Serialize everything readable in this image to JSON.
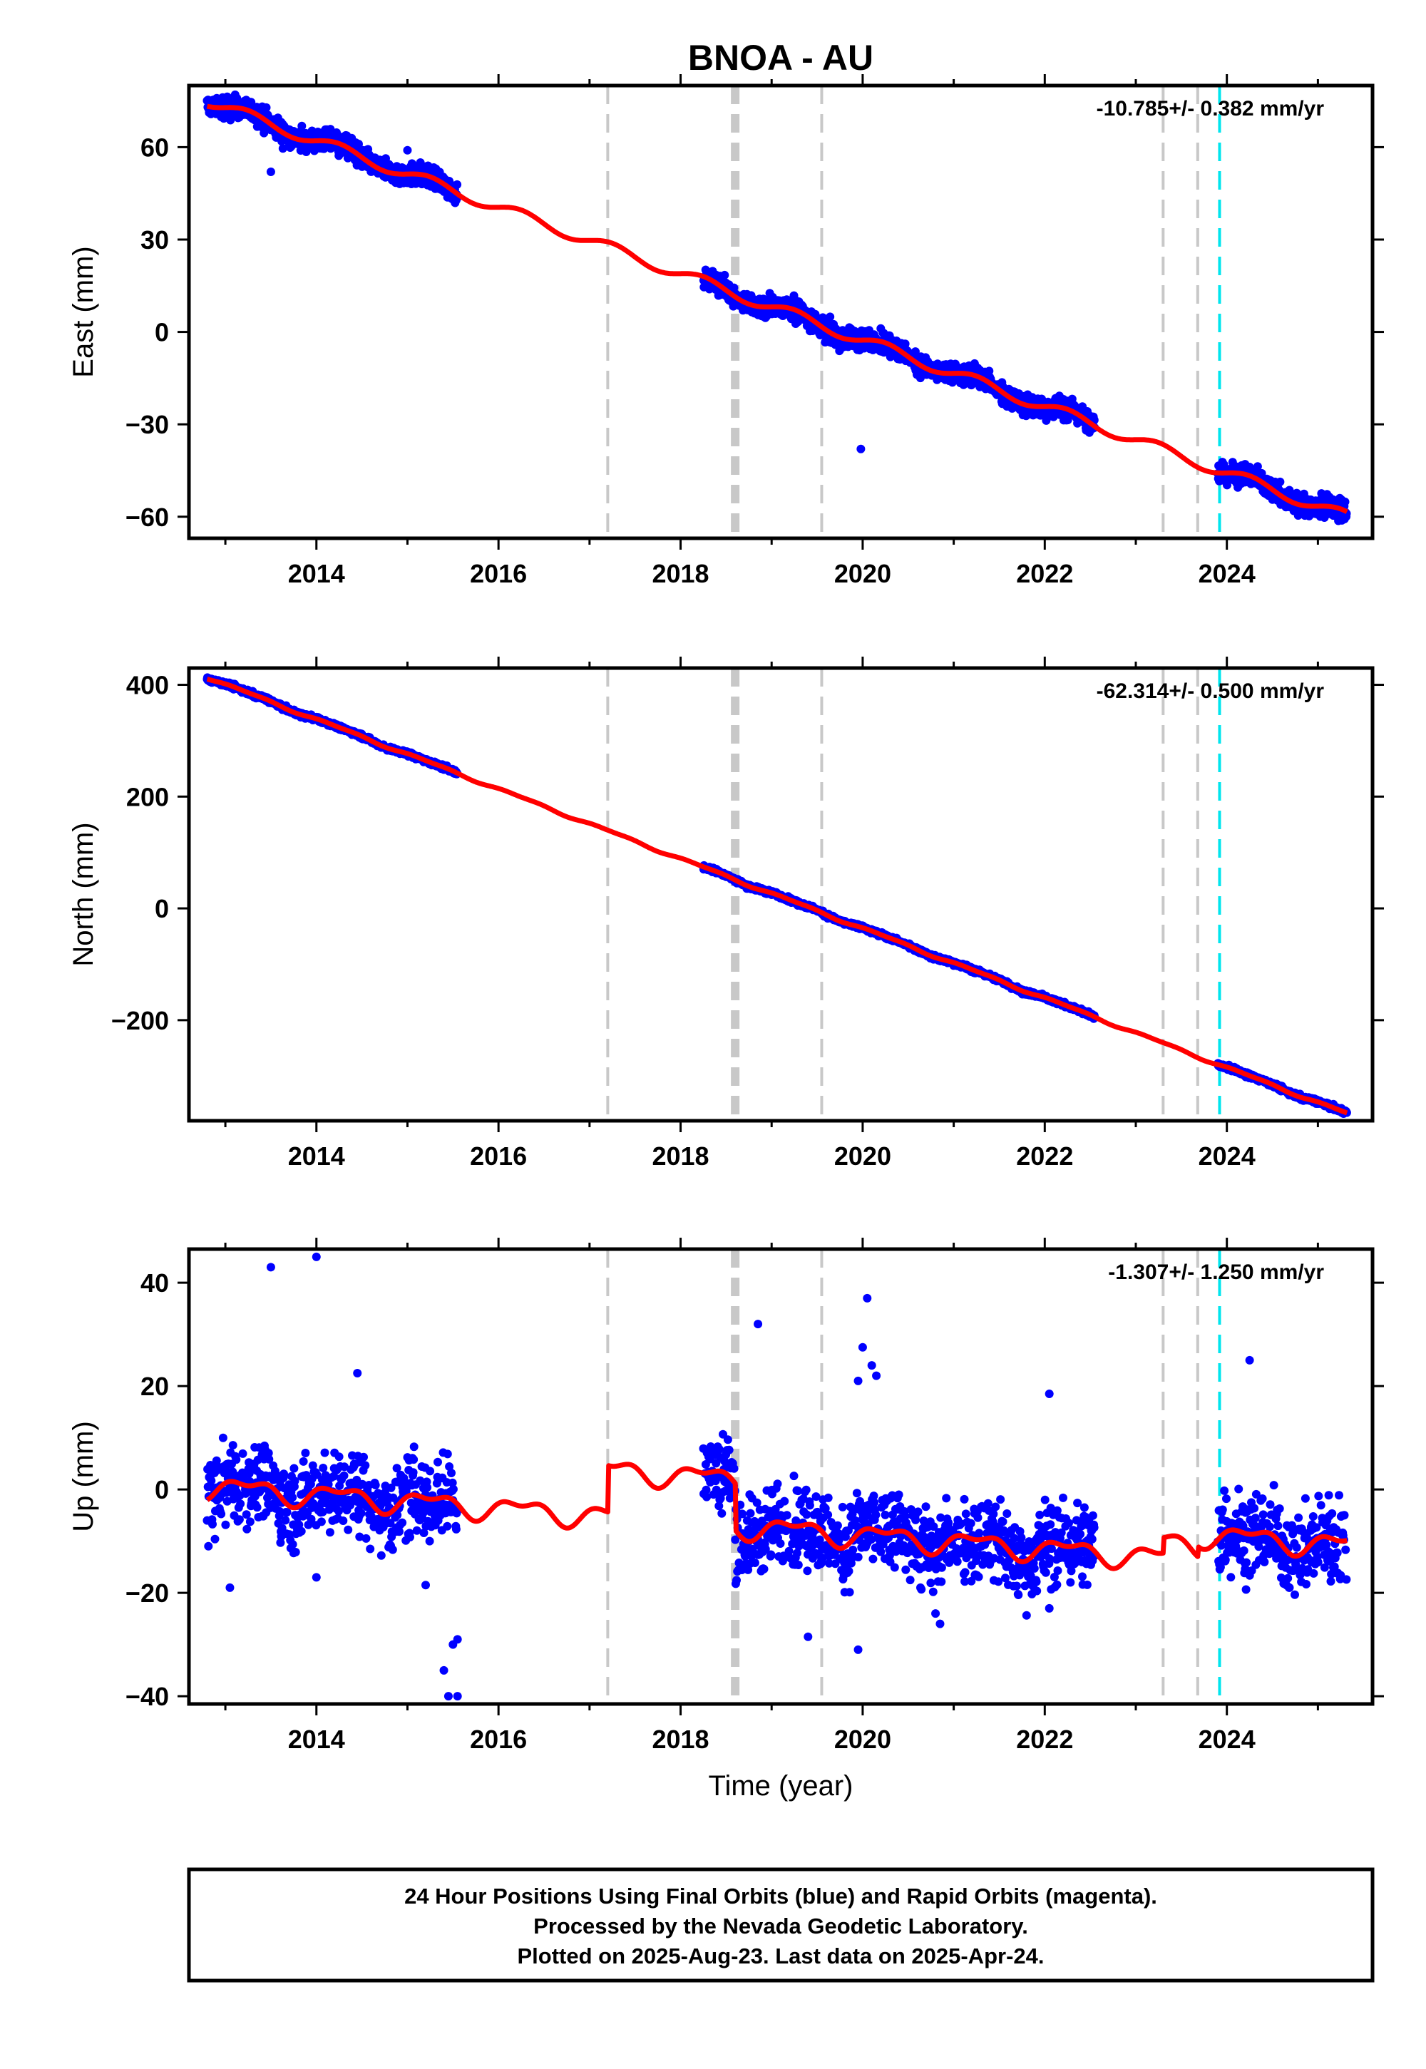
{
  "chart_data": {
    "type": "scatter",
    "title": "BNOA - AU",
    "xlabel": "Time (year)",
    "xlim": [
      2012.6,
      2025.6
    ],
    "xticks": [
      2014,
      2016,
      2018,
      2020,
      2022,
      2024
    ],
    "colors": {
      "data": "#0000ff",
      "model": "#ff0000",
      "steps": "#c8c8c8",
      "equipment": "#00e5ee"
    },
    "data_segments": [
      [
        2012.8,
        2015.55
      ],
      [
        2018.25,
        2022.55
      ],
      [
        2023.9,
        2025.32
      ]
    ],
    "equipment_lines": [
      2017.2,
      2018.6,
      2019.55,
      2023.3,
      2023.68
    ],
    "thick_equipment_line": 2018.6,
    "cyan_line": 2023.92,
    "panels": [
      {
        "name": "east",
        "ylabel": "East (mm)",
        "ylim": [
          -67,
          80
        ],
        "yticks": [
          60,
          30,
          0,
          -30,
          -60
        ],
        "ytick_labels": [
          "60",
          "30",
          "0",
          "−30",
          "−60"
        ],
        "rate_text": "-10.785+/- 0.382 mm/yr",
        "trend": {
          "t0": 2012.8,
          "y0": 75.0,
          "slope": -10.785
        },
        "seasonal": [
          1.8,
          0.0
        ],
        "noise": 2.5,
        "outliers": [
          [
            2013.5,
            52
          ],
          [
            2019.98,
            -38
          ],
          [
            2015.0,
            59
          ]
        ],
        "up_steps": []
      },
      {
        "name": "north",
        "ylabel": "North (mm)",
        "ylim": [
          -380,
          430
        ],
        "yticks": [
          400,
          200,
          0,
          -200
        ],
        "ytick_labels": [
          "400",
          "200",
          "0",
          "−200"
        ],
        "rate_text": "-62.314+/- 0.500 mm/yr",
        "trend": {
          "t0": 2012.8,
          "y0": 413.0,
          "slope": -62.314
        },
        "seasonal": [
          2.0,
          1.0
        ],
        "noise": 3.0,
        "outliers": [],
        "up_steps": []
      },
      {
        "name": "up",
        "ylabel": "Up (mm)",
        "ylim": [
          -41.5,
          46.5
        ],
        "yticks": [
          40,
          20,
          0,
          -20,
          -40
        ],
        "ytick_labels": [
          "40",
          "20",
          "0",
          "−20",
          "−40"
        ],
        "rate_text": "-1.307+/- 1.250 mm/yr",
        "trend": {
          "t0": 2012.8,
          "y0": 0.5,
          "slope": -1.307
        },
        "seasonal": [
          1.8,
          1.0
        ],
        "noise": 5.8,
        "outliers": [
          [
            2013.5,
            43
          ],
          [
            2014.0,
            45
          ],
          [
            2014.45,
            22.5
          ],
          [
            2015.5,
            -30
          ],
          [
            2015.55,
            -29
          ],
          [
            2015.45,
            -40
          ],
          [
            2015.55,
            -40
          ],
          [
            2015.4,
            -35
          ],
          [
            2018.85,
            32
          ],
          [
            2020.05,
            37
          ],
          [
            2020.0,
            27.5
          ],
          [
            2020.1,
            24
          ],
          [
            2020.15,
            22
          ],
          [
            2019.95,
            21
          ],
          [
            2019.4,
            -28.5
          ],
          [
            2019.95,
            -31
          ],
          [
            2020.8,
            -24
          ],
          [
            2020.85,
            -26
          ],
          [
            2022.05,
            -23
          ],
          [
            2024.25,
            25
          ],
          [
            2022.05,
            18.5
          ],
          [
            2013.05,
            -19
          ],
          [
            2014.0,
            -17
          ],
          [
            2015.2,
            -18.5
          ]
        ],
        "up_steps": [
          [
            2017.2,
            9.0
          ],
          [
            2018.6,
            -9.0
          ],
          [
            2023.3,
            3.0
          ],
          [
            2023.68,
            2.0
          ]
        ]
      }
    ]
  },
  "caption": {
    "line1": "24 Hour Positions Using Final Orbits (blue) and Rapid Orbits (magenta).",
    "line2": "Processed by the Nevada Geodetic Laboratory.",
    "line3": "Plotted on 2025-Aug-23. Last data on 2025-Apr-24."
  }
}
